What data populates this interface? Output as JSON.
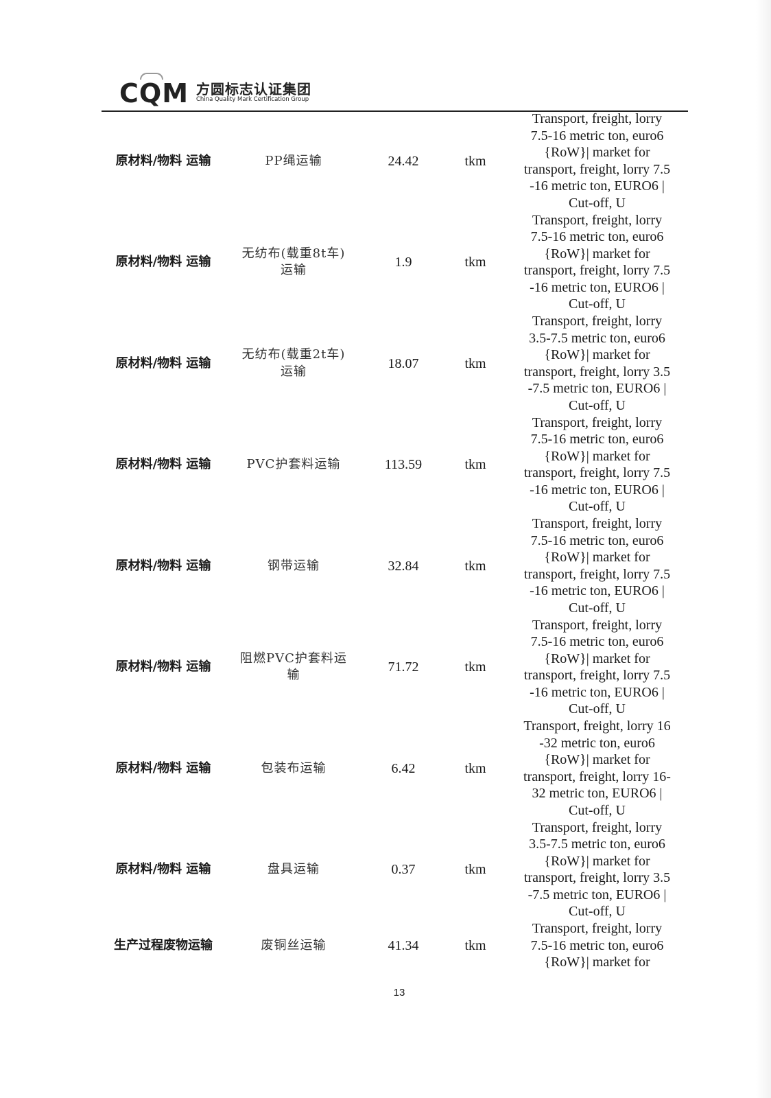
{
  "header": {
    "logo_mark": "CQM",
    "logo_cn": "方圆标志认证集团",
    "logo_en": "China Quality Mark Certification Group"
  },
  "rows": [
    {
      "category": "原材料/物料 运输",
      "item": "PP绳运输",
      "amount": "24.42",
      "unit": "tkm",
      "process": "Transport, freight, lorry\n7.5-16 metric ton, euro6\n{RoW}| market for\ntransport, freight, lorry 7.5\n-16 metric ton, EURO6 |\nCut-off, U"
    },
    {
      "category": "原材料/物料 运输",
      "item": "无纺布(载重8t车)运输",
      "amount": "1.9",
      "unit": "tkm",
      "process": "Transport, freight, lorry\n7.5-16 metric ton, euro6\n{RoW}| market for\ntransport, freight, lorry 7.5\n-16 metric ton, EURO6 |\nCut-off, U"
    },
    {
      "category": "原材料/物料 运输",
      "item": "无纺布(载重2t车)运输",
      "amount": "18.07",
      "unit": "tkm",
      "process": "Transport, freight, lorry\n3.5-7.5 metric ton, euro6\n{RoW}| market for\ntransport, freight, lorry 3.5\n-7.5 metric ton, EURO6 |\nCut-off, U"
    },
    {
      "category": "原材料/物料 运输",
      "item": "PVC护套料运输",
      "amount": "113.59",
      "unit": "tkm",
      "process": "Transport, freight, lorry\n7.5-16 metric ton, euro6\n{RoW}| market for\ntransport, freight, lorry 7.5\n-16 metric ton, EURO6 |\nCut-off, U"
    },
    {
      "category": "原材料/物料 运输",
      "item": "钢带运输",
      "amount": "32.84",
      "unit": "tkm",
      "process": "Transport, freight, lorry\n7.5-16 metric ton, euro6\n{RoW}| market for\ntransport, freight, lorry 7.5\n-16 metric ton, EURO6 |\nCut-off, U"
    },
    {
      "category": "原材料/物料 运输",
      "item": "阻燃PVC护套料运输",
      "amount": "71.72",
      "unit": "tkm",
      "process": "Transport, freight, lorry\n7.5-16 metric ton, euro6\n{RoW}| market for\ntransport, freight, lorry 7.5\n-16 metric ton, EURO6 |\nCut-off, U"
    },
    {
      "category": "原材料/物料 运输",
      "item": "包装布运输",
      "amount": "6.42",
      "unit": "tkm",
      "process": "Transport, freight, lorry 16\n-32 metric ton, euro6\n{RoW}| market for\ntransport, freight, lorry 16-\n32 metric ton, EURO6 |\nCut-off, U"
    },
    {
      "category": "原材料/物料 运输",
      "item": "盘具运输",
      "amount": "0.37",
      "unit": "tkm",
      "process": "Transport, freight, lorry\n3.5-7.5 metric ton, euro6\n{RoW}| market for\ntransport, freight, lorry 3.5\n-7.5 metric ton, EURO6 |\nCut-off, U"
    },
    {
      "category": "生产过程废物运输",
      "item": "废铜丝运输",
      "amount": "41.34",
      "unit": "tkm",
      "process": "Transport, freight, lorry\n7.5-16 metric ton, euro6\n{RoW}| market for"
    }
  ],
  "footer": {
    "page_number": "13"
  }
}
